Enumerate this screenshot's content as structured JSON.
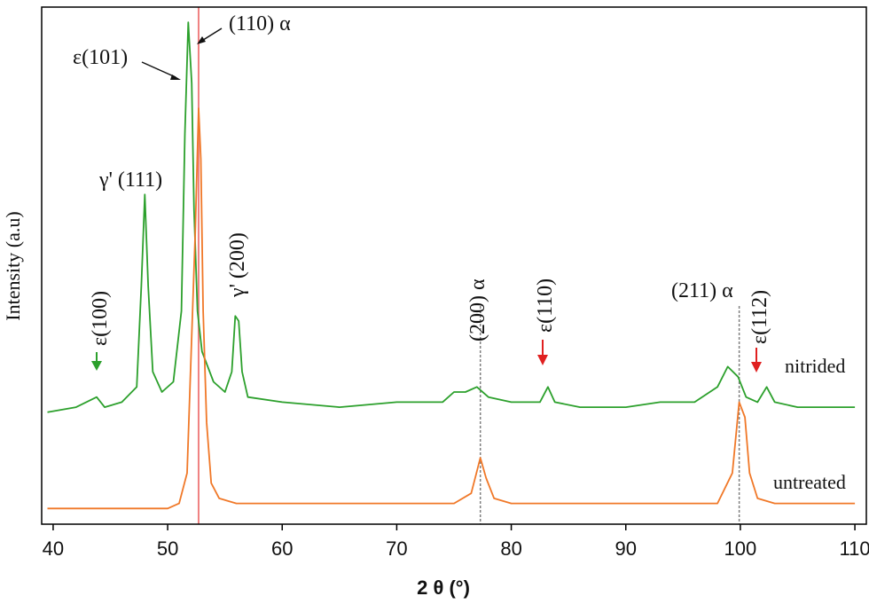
{
  "chart_data": {
    "type": "line",
    "xlabel": "2 θ (°)",
    "ylabel": "Intensity (a.u)",
    "xlim": [
      39,
      111
    ],
    "ylim": [
      0,
      100
    ],
    "xticks": [
      40,
      50,
      60,
      70,
      80,
      90,
      100,
      110
    ],
    "grid": false,
    "legend": "none",
    "series": [
      {
        "name": "nitrided",
        "color": "#2ca02c",
        "points": [
          [
            39.5,
            20
          ],
          [
            42,
            21
          ],
          [
            43.8,
            23
          ],
          [
            44.5,
            21
          ],
          [
            46,
            22
          ],
          [
            47.3,
            25
          ],
          [
            47.7,
            45
          ],
          [
            48,
            63
          ],
          [
            48.3,
            45
          ],
          [
            48.7,
            28
          ],
          [
            49.5,
            24
          ],
          [
            50.5,
            26
          ],
          [
            51.2,
            40
          ],
          [
            51.5,
            75
          ],
          [
            51.8,
            97
          ],
          [
            52.1,
            85
          ],
          [
            52.3,
            60
          ],
          [
            52.6,
            40
          ],
          [
            53,
            32
          ],
          [
            54,
            26
          ],
          [
            55,
            24
          ],
          [
            55.6,
            28
          ],
          [
            55.9,
            39
          ],
          [
            56.2,
            38
          ],
          [
            56.5,
            28
          ],
          [
            57,
            23
          ],
          [
            60,
            22
          ],
          [
            65,
            21
          ],
          [
            70,
            22
          ],
          [
            74,
            22
          ],
          [
            75,
            24
          ],
          [
            76,
            24
          ],
          [
            77,
            25
          ],
          [
            78,
            23
          ],
          [
            80,
            22
          ],
          [
            82.5,
            22
          ],
          [
            83.2,
            25
          ],
          [
            83.8,
            22
          ],
          [
            86,
            21
          ],
          [
            90,
            21
          ],
          [
            93,
            22
          ],
          [
            96,
            22
          ],
          [
            98,
            25
          ],
          [
            98.9,
            29
          ],
          [
            99.8,
            27
          ],
          [
            100.5,
            23
          ],
          [
            101.5,
            22
          ],
          [
            102.3,
            25
          ],
          [
            103,
            22
          ],
          [
            105,
            21
          ],
          [
            108,
            21
          ],
          [
            110,
            21
          ]
        ]
      },
      {
        "name": "untreated",
        "color": "#f07828",
        "points": [
          [
            39.5,
            1
          ],
          [
            45,
            1
          ],
          [
            50,
            1
          ],
          [
            51,
            2
          ],
          [
            51.7,
            8
          ],
          [
            52.1,
            35
          ],
          [
            52.4,
            55
          ],
          [
            52.7,
            80
          ],
          [
            52.9,
            70
          ],
          [
            53.1,
            40
          ],
          [
            53.4,
            18
          ],
          [
            53.8,
            6
          ],
          [
            54.5,
            3
          ],
          [
            56,
            2
          ],
          [
            60,
            2
          ],
          [
            70,
            2
          ],
          [
            75,
            2
          ],
          [
            76.5,
            4
          ],
          [
            77.3,
            11
          ],
          [
            77.8,
            7
          ],
          [
            78.5,
            3
          ],
          [
            80,
            2
          ],
          [
            90,
            2
          ],
          [
            98,
            2
          ],
          [
            99.3,
            8
          ],
          [
            99.9,
            22
          ],
          [
            100.4,
            19
          ],
          [
            100.8,
            8
          ],
          [
            101.5,
            3
          ],
          [
            103,
            2
          ],
          [
            110,
            2
          ]
        ]
      }
    ],
    "reference_lines": [
      {
        "x": 52.7,
        "color": "#f08080"
      },
      {
        "x": 77.3,
        "color": "#808080"
      },
      {
        "x": 99.9,
        "color": "#808080"
      }
    ],
    "series_labels": [
      "nitrided",
      "untreated"
    ],
    "annotations": [
      {
        "text": "(110) α"
      },
      {
        "text": "ε(101)"
      },
      {
        "text": "γ' (111)"
      },
      {
        "text": "γ' (200)"
      },
      {
        "text": "ε(100)"
      },
      {
        "text": "(200) α"
      },
      {
        "text": "ε(110)"
      },
      {
        "text": "(211) α"
      },
      {
        "text": "ε(112)"
      }
    ],
    "arrow_colors": {
      "green": "#2ca02c",
      "red": "#e02020",
      "black": "#111111"
    }
  }
}
